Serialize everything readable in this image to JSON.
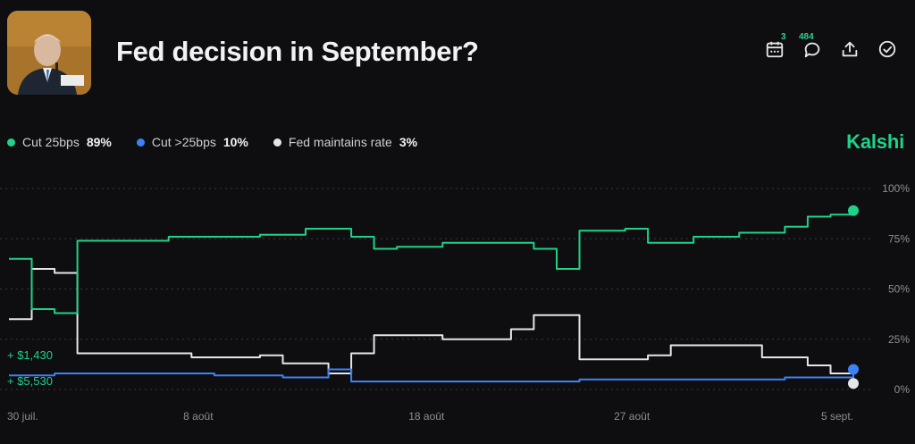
{
  "header": {
    "title": "Fed decision in September?",
    "icons": [
      {
        "name": "calendar-icon",
        "badge": "3"
      },
      {
        "name": "comment-icon",
        "badge": "484"
      },
      {
        "name": "share-icon",
        "badge": ""
      },
      {
        "name": "check-circle-icon",
        "badge": ""
      }
    ]
  },
  "brand": "Kalshi",
  "legend": [
    {
      "label": "Cut 25bps",
      "pct": "89%",
      "color": "#1ed28a"
    },
    {
      "label": "Cut >25bps",
      "pct": "10%",
      "color": "#3b82f6"
    },
    {
      "label": "Fed maintains rate",
      "pct": "3%",
      "color": "#e6e6e6"
    }
  ],
  "chart_data": {
    "type": "line",
    "ylim": [
      0,
      100
    ],
    "y_ticks": [
      "100%",
      "75%",
      "50%",
      "25%",
      "0%"
    ],
    "x_ticks": [
      "30 juil.",
      "8 août",
      "18 août",
      "27 août",
      "5 sept."
    ],
    "grid": true,
    "x_range": [
      "2024-07-30",
      "2024-09-05"
    ],
    "volume_labels": [
      "+ $1,430",
      "+ $5,530"
    ],
    "series": [
      {
        "name": "Cut 25bps",
        "color": "#1ed28a",
        "x": [
          "2024-07-30",
          "2024-07-31",
          "2024-08-01",
          "2024-08-02",
          "2024-08-04",
          "2024-08-06",
          "2024-08-08",
          "2024-08-10",
          "2024-08-12",
          "2024-08-13",
          "2024-08-14",
          "2024-08-15",
          "2024-08-16",
          "2024-08-18",
          "2024-08-20",
          "2024-08-22",
          "2024-08-23",
          "2024-08-24",
          "2024-08-26",
          "2024-08-27",
          "2024-08-29",
          "2024-08-31",
          "2024-09-02",
          "2024-09-03",
          "2024-09-04",
          "2024-09-05"
        ],
        "y": [
          65,
          40,
          38,
          74,
          74,
          76,
          76,
          77,
          80,
          80,
          76,
          70,
          71,
          73,
          73,
          70,
          60,
          79,
          80,
          73,
          76,
          78,
          81,
          86,
          87,
          89
        ]
      },
      {
        "name": "Cut >25bps",
        "color": "#3b82f6",
        "x": [
          "2024-07-30",
          "2024-08-01",
          "2024-08-04",
          "2024-08-08",
          "2024-08-11",
          "2024-08-13",
          "2024-08-14",
          "2024-08-16",
          "2024-08-20",
          "2024-08-24",
          "2024-08-28",
          "2024-09-02",
          "2024-09-05"
        ],
        "y": [
          7,
          8,
          8,
          7,
          6,
          10,
          4,
          4,
          4,
          5,
          5,
          6,
          10
        ]
      },
      {
        "name": "Fed maintains rate",
        "color": "#e6e6e6",
        "x": [
          "2024-07-30",
          "2024-07-31",
          "2024-08-01",
          "2024-08-02",
          "2024-08-04",
          "2024-08-07",
          "2024-08-10",
          "2024-08-11",
          "2024-08-13",
          "2024-08-14",
          "2024-08-15",
          "2024-08-18",
          "2024-08-21",
          "2024-08-22",
          "2024-08-23",
          "2024-08-24",
          "2024-08-27",
          "2024-08-28",
          "2024-09-01",
          "2024-09-03",
          "2024-09-04",
          "2024-09-05"
        ],
        "y": [
          35,
          60,
          58,
          18,
          18,
          16,
          17,
          13,
          8,
          18,
          27,
          25,
          30,
          37,
          37,
          15,
          17,
          22,
          16,
          12,
          8,
          3
        ]
      }
    ]
  }
}
